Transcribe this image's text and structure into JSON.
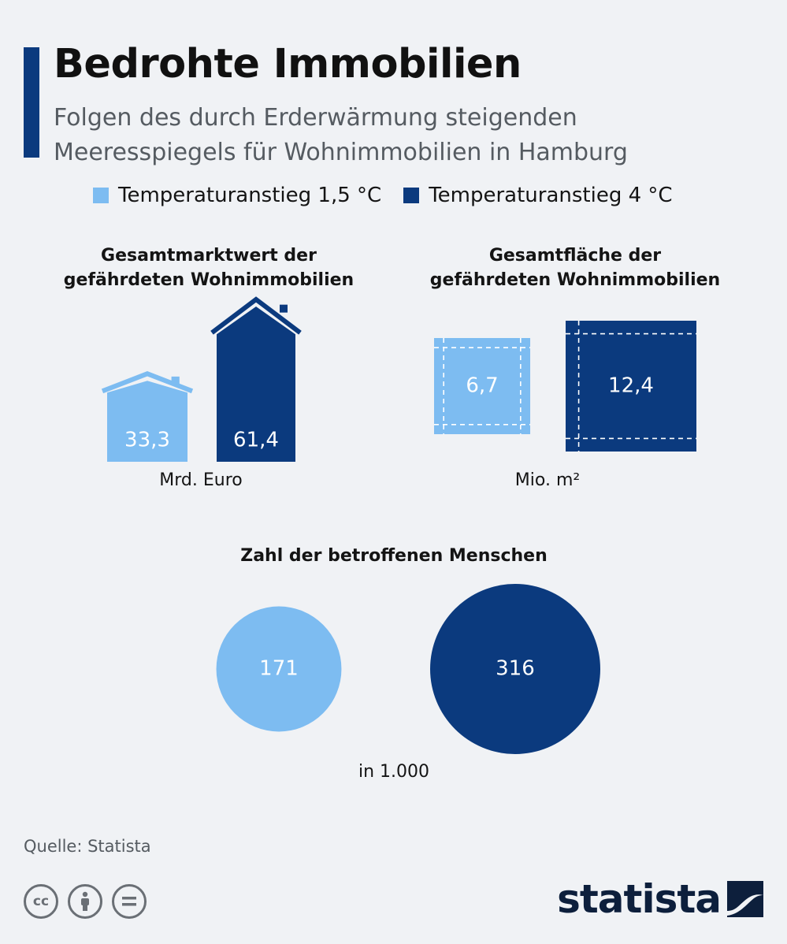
{
  "header": {
    "title": "Bedrohte Immobilien",
    "subtitle_line1": "Folgen des durch Erderwärmung steigenden",
    "subtitle_line2": "Meeresspiegels für Wohnimmobilien in Hamburg"
  },
  "colors": {
    "series_1_5": "#7dbcf1",
    "series_4": "#0b3a7e",
    "accent": "#0b3a7e"
  },
  "legend": [
    {
      "label": "Temperaturanstieg 1,5 °C",
      "color": "#7dbcf1"
    },
    {
      "label": "Temperaturanstieg 4 °C",
      "color": "#0b3a7e"
    }
  ],
  "chart_data": [
    {
      "type": "bar",
      "title_line1": "Gesamtmarktwert der",
      "title_line2": "gefährdeten Wohnimmobilien",
      "unit": "Mrd. Euro",
      "mark": "house-icon",
      "series": [
        {
          "name": "Temperaturanstieg 1,5 °C",
          "value": 33.3,
          "label": "33,3"
        },
        {
          "name": "Temperaturanstieg 4 °C",
          "value": 61.4,
          "label": "61,4"
        }
      ]
    },
    {
      "type": "area",
      "title_line1": "Gesamtfläche der",
      "title_line2": "gefährdeten Wohnimmobilien",
      "unit": "Mio. m²",
      "mark": "square",
      "series": [
        {
          "name": "Temperaturanstieg 1,5 °C",
          "value": 6.7,
          "label": "6,7"
        },
        {
          "name": "Temperaturanstieg 4 °C",
          "value": 12.4,
          "label": "12,4"
        }
      ]
    },
    {
      "type": "bubble",
      "title": "Zahl der betroffenen Menschen",
      "unit": "in 1.000",
      "mark": "circle",
      "series": [
        {
          "name": "Temperaturanstieg 1,5 °C",
          "value": 171,
          "label": "171"
        },
        {
          "name": "Temperaturanstieg 4 °C",
          "value": 316,
          "label": "316"
        }
      ]
    }
  ],
  "footer": {
    "source": "Quelle: Statista",
    "cc_icons": [
      "cc-icon",
      "by-icon",
      "nd-icon"
    ],
    "brand": "statista"
  }
}
